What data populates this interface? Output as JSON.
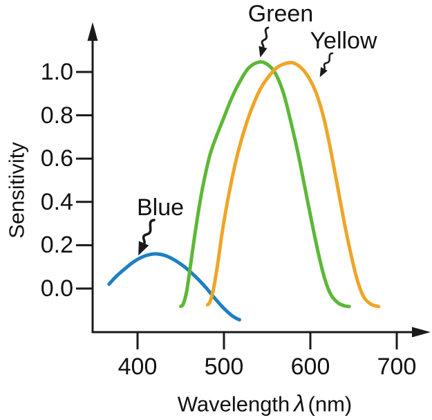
{
  "figure": {
    "background": "#ffffff",
    "ink_color": "#1a1a1a"
  },
  "axes": {
    "ylabel": "Sensitivity",
    "xlabel_full": "Wavelength λ (nm)",
    "xlabel_prefix": "Wavelength",
    "xlabel_lambda": "λ",
    "xlabel_suffix": "(nm)",
    "x_tick_labels": [
      "400",
      "500",
      "600",
      "700"
    ],
    "y_tick_labels": [
      "1.0",
      "0.8",
      "0.6",
      "0.4",
      "0.2",
      "0.0"
    ]
  },
  "chart_data": {
    "type": "line",
    "title": "",
    "xlabel": "Wavelength λ (nm)",
    "ylabel": "Sensitivity",
    "x_ticks": [
      400,
      500,
      600,
      700
    ],
    "y_ticks": [
      1.0,
      0.8,
      0.6,
      0.4,
      0.2,
      0.0
    ],
    "x_axis_shown_range": [
      347,
      739
    ],
    "baseline_y_of_x_axis": -0.2,
    "grid": false,
    "legend": "inline-annotations",
    "series": [
      {
        "name": "Blue",
        "color": "#1e7fc2",
        "peak": {
          "x": 422,
          "y": 0.16
        },
        "points": [
          [
            367,
            0.02
          ],
          [
            375,
            0.055
          ],
          [
            385,
            0.09
          ],
          [
            395,
            0.122
          ],
          [
            405,
            0.145
          ],
          [
            414,
            0.157
          ],
          [
            422,
            0.16
          ],
          [
            432,
            0.152
          ],
          [
            443,
            0.131
          ],
          [
            455,
            0.098
          ],
          [
            467,
            0.055
          ],
          [
            479,
            0.005
          ],
          [
            490,
            -0.048
          ],
          [
            500,
            -0.092
          ],
          [
            508,
            -0.121
          ],
          [
            514,
            -0.137
          ],
          [
            518,
            -0.144
          ]
        ]
      },
      {
        "name": "Green",
        "color": "#5cb837",
        "peak": {
          "x": 541,
          "y": 1.05
        },
        "points": [
          [
            450,
            -0.082
          ],
          [
            453,
            -0.07
          ],
          [
            457,
            -0.01
          ],
          [
            461,
            0.1
          ],
          [
            466,
            0.24
          ],
          [
            471,
            0.37
          ],
          [
            477,
            0.5
          ],
          [
            484,
            0.62
          ],
          [
            492,
            0.71
          ],
          [
            500,
            0.79
          ],
          [
            509,
            0.88
          ],
          [
            519,
            0.96
          ],
          [
            529,
            1.02
          ],
          [
            541,
            1.046
          ],
          [
            551,
            1.033
          ],
          [
            560,
            0.99
          ],
          [
            569,
            0.9
          ],
          [
            578,
            0.76
          ],
          [
            586,
            0.62
          ],
          [
            594,
            0.46
          ],
          [
            602,
            0.3
          ],
          [
            610,
            0.15
          ],
          [
            617,
            0.04
          ],
          [
            624,
            -0.03
          ],
          [
            632,
            -0.066
          ],
          [
            639,
            -0.079
          ],
          [
            645,
            -0.083
          ]
        ]
      },
      {
        "name": "Yellow",
        "color": "#efa528",
        "peak": {
          "x": 578,
          "y": 1.04
        },
        "points": [
          [
            481,
            -0.075
          ],
          [
            484,
            -0.06
          ],
          [
            488,
            0.0
          ],
          [
            493,
            0.12
          ],
          [
            498,
            0.26
          ],
          [
            504,
            0.4
          ],
          [
            510,
            0.52
          ],
          [
            517,
            0.64
          ],
          [
            525,
            0.75
          ],
          [
            533,
            0.84
          ],
          [
            542,
            0.92
          ],
          [
            552,
            0.98
          ],
          [
            563,
            1.025
          ],
          [
            578,
            1.043
          ],
          [
            589,
            1.02
          ],
          [
            598,
            0.975
          ],
          [
            607,
            0.9
          ],
          [
            616,
            0.78
          ],
          [
            624,
            0.63
          ],
          [
            632,
            0.46
          ],
          [
            640,
            0.29
          ],
          [
            648,
            0.14
          ],
          [
            655,
            0.03
          ],
          [
            662,
            -0.04
          ],
          [
            670,
            -0.072
          ],
          [
            679,
            -0.083
          ]
        ]
      }
    ],
    "annotations": [
      {
        "text": "Blue",
        "arrow_points_to_nm": 405
      },
      {
        "text": "Green",
        "arrow_points_to_nm": 543
      },
      {
        "text": "Yellow",
        "arrow_points_to_nm": 610
      }
    ]
  }
}
